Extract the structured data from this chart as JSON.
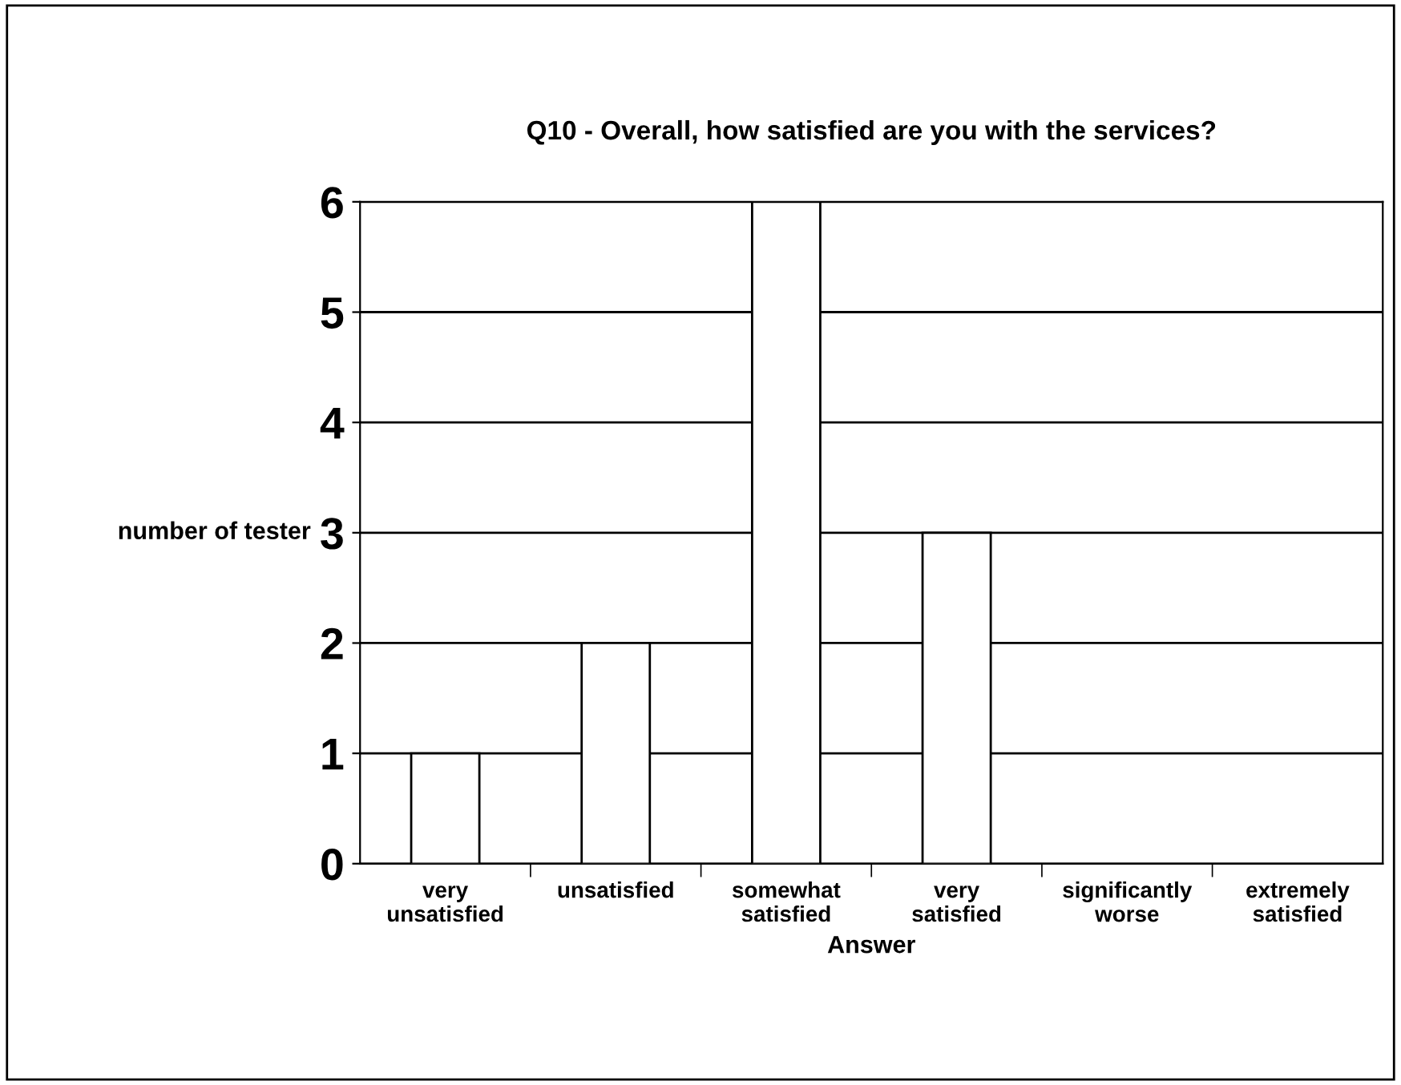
{
  "chart_data": {
    "type": "bar",
    "title": "Q10 - Overall, how satisfied are you with the services?",
    "xlabel": "Answer",
    "ylabel": "number of tester",
    "categories": [
      "very unsatisfied",
      "unsatisfied",
      "somewhat satisfied",
      "very satisfied",
      "significantly worse",
      "extremely satisfied"
    ],
    "values": [
      1,
      2,
      6,
      3,
      0,
      0
    ],
    "color": "#ffffff",
    "ylim": [
      0,
      6
    ],
    "yticks": [
      0,
      1,
      2,
      3,
      4,
      5,
      6
    ],
    "grid": "y"
  }
}
